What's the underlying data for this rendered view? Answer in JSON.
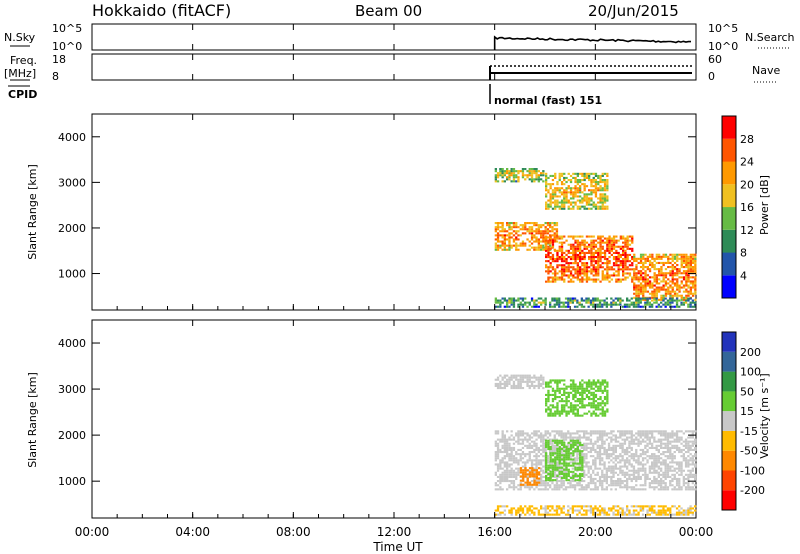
{
  "header": {
    "station": "Hokkaido (fitACF)",
    "beam": "Beam 00",
    "date": "20/Jun/2015"
  },
  "top_panels": {
    "nsky": {
      "label": "N.Sky",
      "ticks": [
        "10^5",
        "10^0"
      ]
    },
    "nsearch": {
      "label": "N.Search",
      "ticks": [
        "10^5",
        "10^0"
      ]
    },
    "freq": {
      "label_line1": "Freq.",
      "label_line2": "[MHz]",
      "ticks": [
        "18",
        "8"
      ]
    },
    "nave": {
      "label": "Nave",
      "ticks": [
        "60",
        "0"
      ]
    },
    "cpid": {
      "label": "CPID",
      "text": "normal (fast) 151"
    }
  },
  "colors": {
    "power_scale": [
      "#0000ff",
      "#2255aa",
      "#2e8b57",
      "#66bb44",
      "#f0c020",
      "#ff9900",
      "#ff5500",
      "#ff0000"
    ],
    "velocity_scale": [
      "#ff0000",
      "#ff4400",
      "#ff8800",
      "#ffbb00",
      "#c8c8c8",
      "#66cc33",
      "#339944",
      "#336699",
      "#2233bb"
    ]
  },
  "chart_data": [
    {
      "type": "heatmap",
      "name": "power-panel",
      "ylabel": "Slant Range [km]",
      "yticks": [
        "4000",
        "3000",
        "2000",
        "1000"
      ],
      "ylim": [
        200,
        4500
      ],
      "xlim_hours": [
        0,
        24
      ],
      "colorbar": {
        "label": "Power [dB]",
        "ticks": [
          "28",
          "24",
          "20",
          "16",
          "12",
          "8",
          "4"
        ],
        "range": [
          0,
          32
        ]
      },
      "bands": [
        {
          "t0": 16.0,
          "t1": 17.9,
          "r0": 3000,
          "r1": 3300,
          "level": 0.55
        },
        {
          "t0": 18.0,
          "t1": 20.5,
          "r0": 2400,
          "r1": 3200,
          "level": 0.62
        },
        {
          "t0": 16.0,
          "t1": 18.5,
          "r0": 1500,
          "r1": 2100,
          "level": 0.75
        },
        {
          "t0": 18.0,
          "t1": 21.5,
          "r0": 800,
          "r1": 1800,
          "level": 0.85
        },
        {
          "t0": 21.5,
          "t1": 24.0,
          "r0": 400,
          "r1": 1400,
          "level": 0.78
        },
        {
          "t0": 16.0,
          "t1": 24.0,
          "r0": 250,
          "r1": 450,
          "level": 0.4
        }
      ]
    },
    {
      "type": "heatmap",
      "name": "velocity-panel",
      "ylabel": "Slant Range [km]",
      "yticks": [
        "4000",
        "3000",
        "2000",
        "1000"
      ],
      "ylim": [
        200,
        4500
      ],
      "xlim_hours": [
        0,
        24
      ],
      "xlabel": "Time UT",
      "xticks": [
        "00:00",
        "04:00",
        "08:00",
        "12:00",
        "16:00",
        "20:00",
        "00:00"
      ],
      "colorbar": {
        "label": "Velocity [m s⁻¹]",
        "ticks": [
          "200",
          "100",
          "50",
          "15",
          "-15",
          "-50",
          "-100",
          "-200"
        ],
        "range": [
          -250,
          250
        ]
      },
      "bands": [
        {
          "t0": 16.0,
          "t1": 17.9,
          "r0": 3000,
          "r1": 3300,
          "value": 0
        },
        {
          "t0": 18.0,
          "t1": 20.5,
          "r0": 2400,
          "r1": 3200,
          "value": 40
        },
        {
          "t0": 16.0,
          "t1": 24.0,
          "r0": 800,
          "r1": 2100,
          "value": 0
        },
        {
          "t0": 18.0,
          "t1": 19.5,
          "r0": 1000,
          "r1": 1900,
          "value": 40
        },
        {
          "t0": 17.0,
          "t1": 17.8,
          "r0": 900,
          "r1": 1300,
          "value": -60
        },
        {
          "t0": 16.0,
          "t1": 24.0,
          "r0": 250,
          "r1": 450,
          "value": -20
        }
      ]
    }
  ]
}
